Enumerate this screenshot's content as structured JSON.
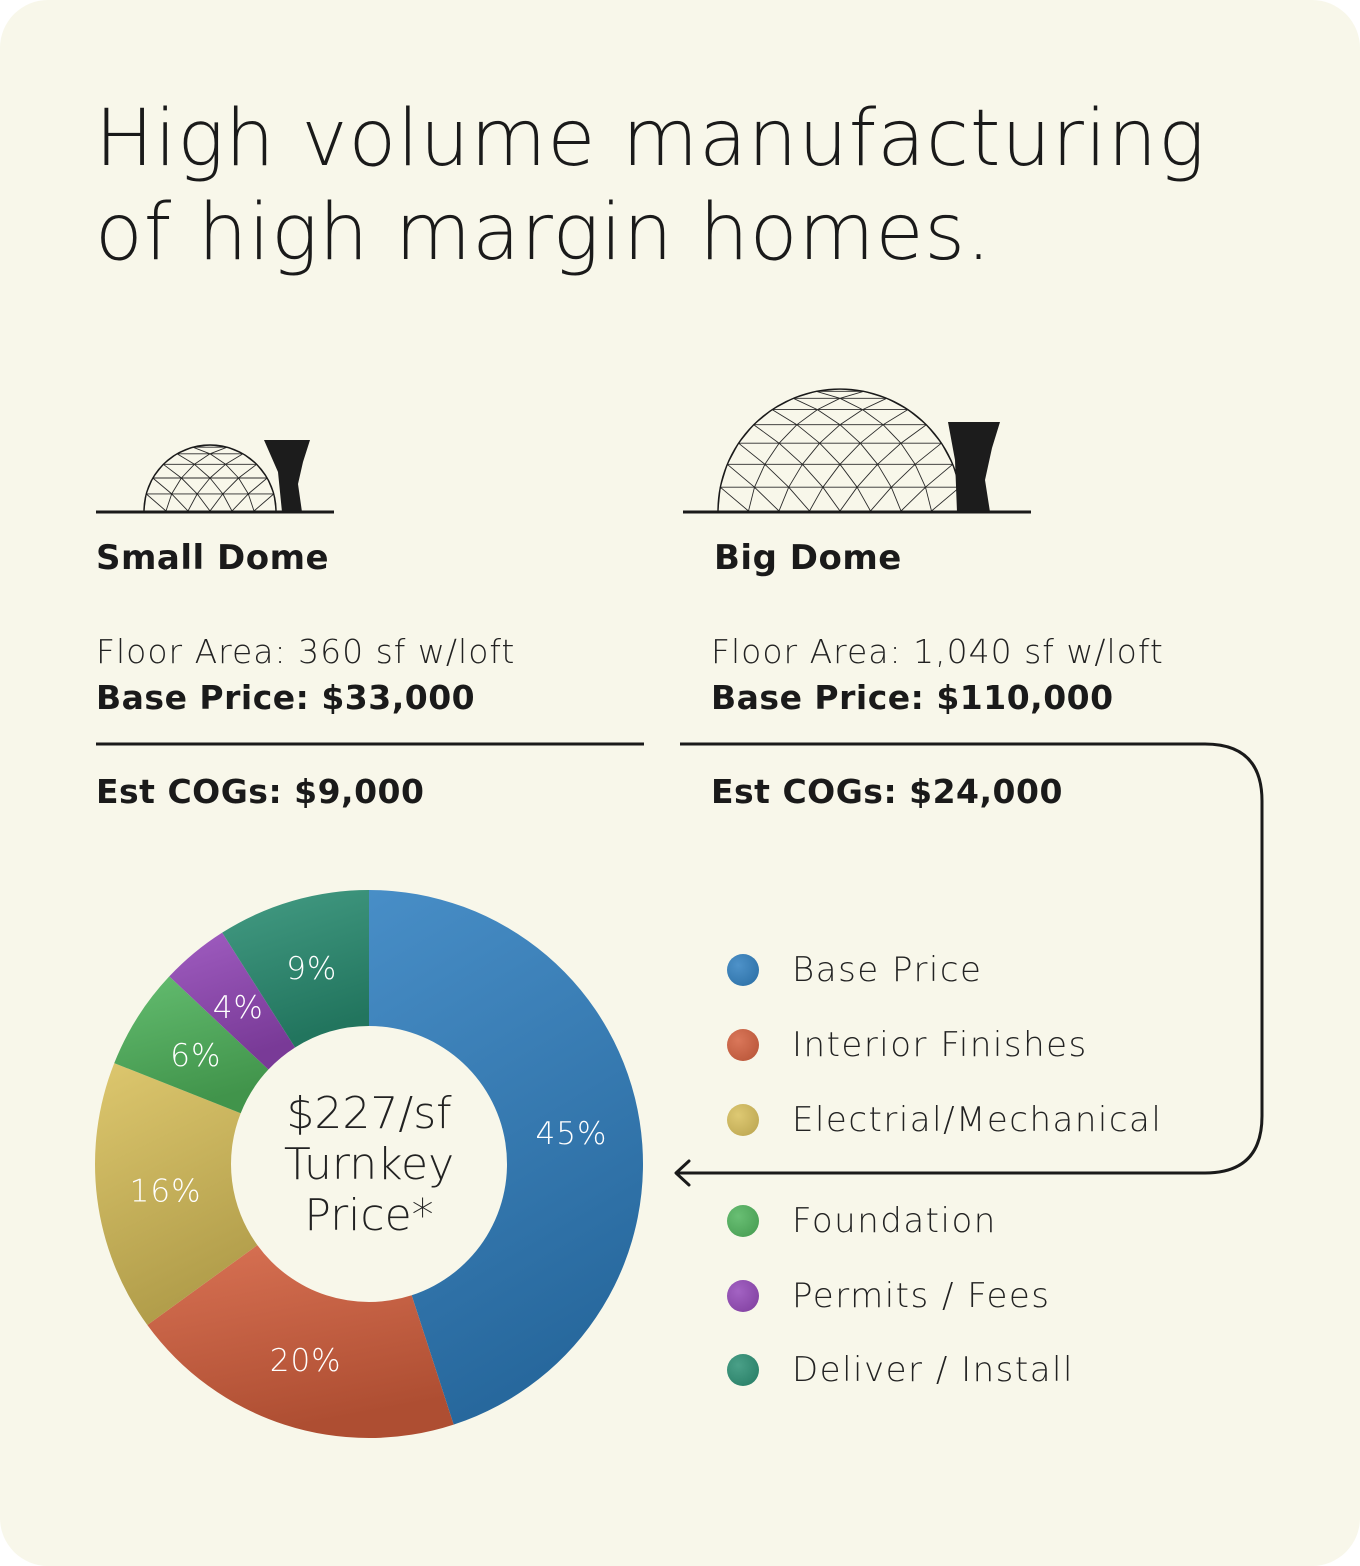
{
  "title": {
    "line1": "High volume manufacturing",
    "line2": "of high margin homes."
  },
  "small_dome": {
    "name": "Small Dome",
    "floor_area": "Floor Area: 360 sf w/loft",
    "base_price": "Base Price: $33,000",
    "est_cogs": "Est COGs: $9,000",
    "icon": "small-geodesic-dome-icon"
  },
  "big_dome": {
    "name": "Big Dome",
    "floor_area": "Floor Area: 1,040 sf w/loft",
    "base_price": "Base Price: $110,000",
    "est_cogs": "Est COGs: $24,000",
    "icon": "big-geodesic-dome-icon"
  },
  "chart_data": {
    "type": "pie",
    "title": "",
    "center_label": [
      "$227/sf",
      "Turnkey",
      "Price*"
    ],
    "series": [
      {
        "name": "Base Price",
        "value": 45,
        "label": "45%",
        "color": "#2f7fbf"
      },
      {
        "name": "Interior Finishes",
        "value": 20,
        "label": "20%",
        "color": "#d45f3d"
      },
      {
        "name": "Electrial/Mechanical",
        "value": 16,
        "label": "16%",
        "color": "#d8bf5a"
      },
      {
        "name": "Foundation",
        "value": 6,
        "label": "6%",
        "color": "#4fb45c"
      },
      {
        "name": "Permits / Fees",
        "value": 4,
        "label": "4%",
        "color": "#9347b8"
      },
      {
        "name": "Deliver / Install",
        "value": 9,
        "label": "9%",
        "color": "#2a8f73"
      }
    ],
    "legend_placement": "right"
  }
}
